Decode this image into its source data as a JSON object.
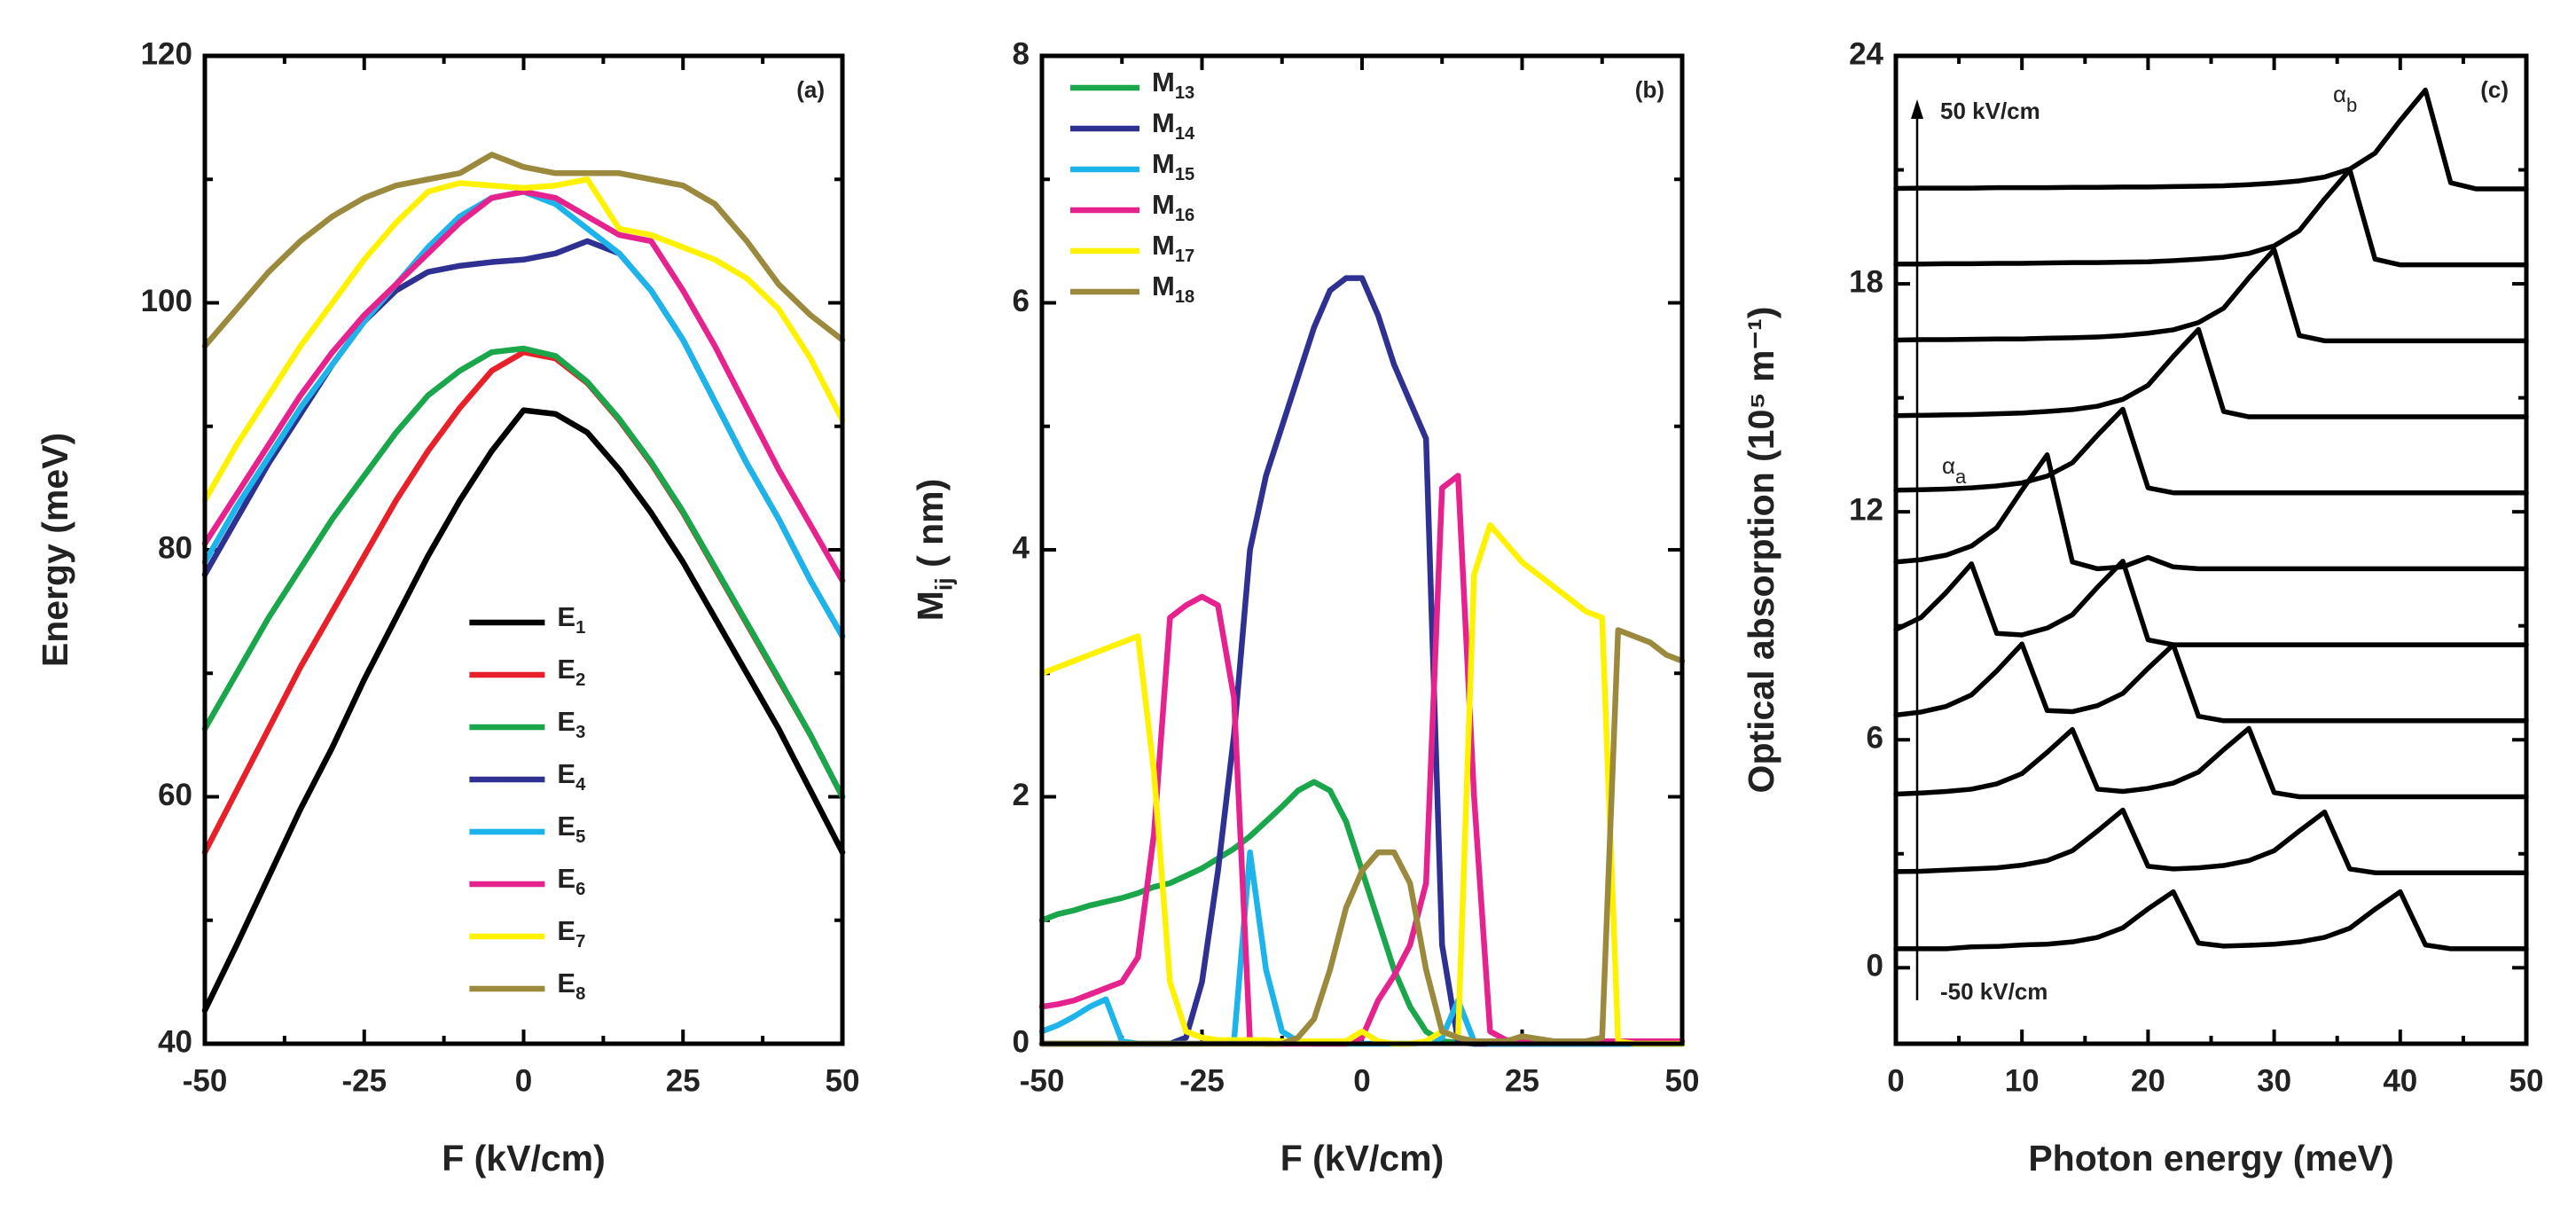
{
  "chart_data": [
    {
      "type": "line",
      "panel_label": "(a)",
      "xlabel": "F (kV/cm)",
      "ylabel": "Energy (meV)",
      "xlim": [
        -50,
        50
      ],
      "ylim": [
        40,
        120
      ],
      "xticks": [
        -50,
        -25,
        0,
        25,
        50
      ],
      "yticks": [
        40,
        60,
        80,
        100,
        120
      ],
      "legend": "lower center",
      "x": [
        -50,
        -45,
        -40,
        -35,
        -30,
        -25,
        -20,
        -15,
        -10,
        -5,
        0,
        5,
        10,
        15,
        20,
        25,
        30,
        35,
        40,
        45,
        50
      ],
      "series": [
        {
          "name": "E1",
          "color": "#000000",
          "values": [
            42.7,
            48,
            53.5,
            59,
            64,
            69.5,
            74.5,
            79.5,
            84,
            88,
            91.3,
            91,
            89.5,
            86.5,
            83,
            79,
            74.5,
            70,
            65.5,
            60.5,
            55.5
          ]
        },
        {
          "name": "E2",
          "color": "#e8202a",
          "values": [
            55.5,
            60.5,
            65.5,
            70.5,
            75,
            79.5,
            84,
            88,
            91.5,
            94.5,
            96,
            95.5,
            93.5,
            90.5,
            87,
            83,
            78.5,
            74,
            69.5,
            65,
            60
          ]
        },
        {
          "name": "E3",
          "color": "#1aa64a",
          "values": [
            65.5,
            70,
            74.5,
            78.5,
            82.5,
            86,
            89.5,
            92.5,
            94.5,
            96,
            96.3,
            95.7,
            93.6,
            90.6,
            87.1,
            83.1,
            78.6,
            74.1,
            69.6,
            65,
            60
          ]
        },
        {
          "name": "E4",
          "color": "#2e3192",
          "values": [
            78,
            82.5,
            87,
            91,
            95,
            98.5,
            101,
            102.5,
            103,
            103.3,
            103.5,
            104,
            105,
            104,
            101,
            97,
            92,
            87,
            82.5,
            77.5,
            73
          ]
        },
        {
          "name": "E5",
          "color": "#1cb4ea",
          "values": [
            79,
            83.5,
            87.5,
            91.5,
            95,
            98.5,
            101.5,
            104.5,
            107,
            108.5,
            109,
            108,
            106,
            104,
            101,
            97,
            92,
            87,
            82.5,
            77.5,
            73
          ]
        },
        {
          "name": "E6",
          "color": "#e6228f",
          "values": [
            80.5,
            84.5,
            88.5,
            92.5,
            96,
            99,
            101.5,
            104,
            106.5,
            108.5,
            109,
            108.5,
            107,
            105.5,
            105,
            101,
            96.5,
            91.5,
            86.5,
            82,
            77.5
          ]
        },
        {
          "name": "E7",
          "color": "#fff200",
          "values": [
            84,
            88.5,
            92.5,
            96.5,
            100,
            103.5,
            106.5,
            109,
            109.7,
            109.5,
            109.3,
            109.5,
            110,
            106,
            105.5,
            104.5,
            103.5,
            102,
            99.5,
            95.5,
            90.5
          ]
        },
        {
          "name": "E8",
          "color": "#9b8a3e",
          "values": [
            96.5,
            99.5,
            102.5,
            105,
            107,
            108.5,
            109.5,
            110,
            110.5,
            112,
            111,
            110.5,
            110.5,
            110.5,
            110,
            109.5,
            108,
            105,
            101.5,
            99,
            97
          ]
        }
      ]
    },
    {
      "type": "line",
      "panel_label": "(b)",
      "xlabel": "F (kV/cm)",
      "ylabel": "Mij ( nm)",
      "xlim": [
        -50,
        50
      ],
      "ylim": [
        0,
        8
      ],
      "xticks": [
        -50,
        -25,
        0,
        25,
        50
      ],
      "yticks": [
        0,
        2,
        4,
        6,
        8
      ],
      "legend": "upper left",
      "x": [
        -50,
        -47.5,
        -45,
        -42.5,
        -40,
        -37.5,
        -35,
        -32.5,
        -30,
        -27.5,
        -25,
        -22.5,
        -20,
        -17.5,
        -15,
        -12.5,
        -10,
        -7.5,
        -5,
        -2.5,
        0,
        2.5,
        5,
        7.5,
        10,
        12.5,
        15,
        17.5,
        20,
        22.5,
        25,
        27.5,
        30,
        32.5,
        35,
        37.5,
        40,
        42.5,
        45,
        47.5,
        50
      ],
      "series": [
        {
          "name": "M13",
          "color": "#1aa64a",
          "values": [
            1.0,
            1.05,
            1.08,
            1.12,
            1.15,
            1.18,
            1.22,
            1.27,
            1.3,
            1.36,
            1.42,
            1.5,
            1.58,
            1.68,
            1.8,
            1.92,
            2.05,
            2.12,
            2.05,
            1.8,
            1.4,
            1.0,
            0.6,
            0.3,
            0.1,
            0.02,
            0.01,
            0,
            0,
            0,
            0,
            0,
            0,
            0,
            0,
            0,
            0,
            0,
            0,
            0,
            0
          ]
        },
        {
          "name": "M14",
          "color": "#2e3192",
          "values": [
            0,
            0,
            0,
            0,
            0,
            0,
            0,
            0,
            0,
            0.05,
            0.5,
            1.4,
            2.5,
            4.0,
            4.6,
            5.0,
            5.4,
            5.8,
            6.1,
            6.2,
            6.2,
            5.9,
            5.5,
            5.2,
            4.9,
            0.8,
            0.02,
            0,
            0,
            0,
            0,
            0,
            0,
            0,
            0,
            0,
            0,
            0,
            0,
            0,
            0
          ]
        },
        {
          "name": "M15",
          "color": "#1cb4ea",
          "values": [
            0.1,
            0.15,
            0.22,
            0.3,
            0.36,
            0.02,
            0,
            0,
            0,
            0,
            0,
            0.01,
            0.02,
            1.55,
            0.6,
            0.1,
            0.02,
            0,
            0,
            0,
            0,
            0,
            0,
            0,
            0.01,
            0.05,
            0.35,
            0.02,
            0,
            0,
            0,
            0,
            0,
            0,
            0,
            0,
            0,
            0,
            0,
            0,
            0
          ]
        },
        {
          "name": "M16",
          "color": "#e6228f",
          "values": [
            0.3,
            0.32,
            0.35,
            0.4,
            0.45,
            0.5,
            0.7,
            1.7,
            3.45,
            3.55,
            3.62,
            3.55,
            2.8,
            0.02,
            0,
            0,
            0,
            0,
            0,
            0,
            0.05,
            0.35,
            0.55,
            0.8,
            1.3,
            4.5,
            4.6,
            2.0,
            0.1,
            0.03,
            0.02,
            0.02,
            0.02,
            0.02,
            0.02,
            0.02,
            0.02,
            0.02,
            0.02,
            0.02,
            0.02
          ]
        },
        {
          "name": "M17",
          "color": "#fff200",
          "values": [
            3.0,
            3.05,
            3.1,
            3.15,
            3.2,
            3.25,
            3.3,
            2.2,
            0.5,
            0.1,
            0.05,
            0.03,
            0.03,
            0.03,
            0.03,
            0.02,
            0.02,
            0.02,
            0.02,
            0.02,
            0.1,
            0.02,
            0,
            0,
            0.02,
            0.1,
            0.05,
            3.8,
            4.2,
            4.05,
            3.9,
            3.8,
            3.7,
            3.6,
            3.5,
            3.45,
            0.02,
            0,
            0,
            0,
            0
          ]
        },
        {
          "name": "M18",
          "color": "#9b8a3e",
          "values": [
            0,
            0,
            0,
            0,
            0,
            0,
            0,
            0,
            0,
            0,
            0,
            0,
            0,
            0,
            0,
            0,
            0.05,
            0.2,
            0.6,
            1.1,
            1.4,
            1.55,
            1.55,
            1.3,
            0.6,
            0.1,
            0.05,
            0.02,
            0.02,
            0.02,
            0.06,
            0.04,
            0.02,
            0.02,
            0.02,
            0.05,
            3.35,
            3.3,
            3.25,
            3.15,
            3.1
          ]
        }
      ]
    },
    {
      "type": "line",
      "panel_label": "(c)",
      "xlabel": "Photon energy (meV)",
      "ylabel": "Optical absorption (10⁵ m⁻¹)",
      "xlim": [
        0,
        50
      ],
      "ylim": [
        -2,
        24
      ],
      "xticks": [
        0,
        10,
        20,
        30,
        40,
        50
      ],
      "yticks": [
        0,
        6,
        12,
        18,
        24
      ],
      "color": "#000000",
      "annotations": [
        "50 kV/cm",
        "-50 kV/cm",
        "αb",
        "αa"
      ],
      "x": [
        0,
        2,
        4,
        6,
        8,
        10,
        12,
        14,
        16,
        18,
        20,
        22,
        24,
        26,
        28,
        30,
        32,
        34,
        36,
        38,
        40,
        42,
        44,
        46,
        48,
        50
      ],
      "series": [
        {
          "values": [
            0.5,
            0.5,
            0.5,
            0.55,
            0.56,
            0.6,
            0.62,
            0.68,
            0.8,
            1.05,
            1.55,
            2.0,
            0.65,
            0.57,
            0.59,
            0.62,
            0.68,
            0.8,
            1.04,
            1.54,
            2.0,
            0.6,
            0.5,
            0.5,
            0.5,
            0.5
          ]
        },
        {
          "values": [
            2.53,
            2.54,
            2.57,
            2.6,
            2.63,
            2.7,
            2.82,
            3.08,
            3.6,
            4.15,
            2.67,
            2.6,
            2.63,
            2.69,
            2.82,
            3.08,
            3.6,
            4.1,
            2.6,
            2.5,
            2.5,
            2.5,
            2.5,
            2.5,
            2.5,
            2.5
          ]
        },
        {
          "values": [
            4.57,
            4.6,
            4.64,
            4.7,
            4.84,
            5.11,
            5.67,
            6.27,
            4.7,
            4.64,
            4.72,
            4.86,
            5.15,
            5.74,
            6.3,
            4.61,
            4.5,
            4.5,
            4.5,
            4.5,
            4.5,
            4.5,
            4.5,
            4.5,
            4.5,
            4.5
          ]
        },
        {
          "values": [
            6.65,
            6.73,
            6.88,
            7.18,
            7.81,
            8.52,
            6.77,
            6.74,
            6.9,
            7.22,
            7.88,
            8.5,
            6.62,
            6.5,
            6.5,
            6.5,
            6.5,
            6.5,
            6.5,
            6.5,
            6.5,
            6.5,
            6.5,
            6.5,
            6.5,
            6.5
          ]
        },
        {
          "values": [
            8.9,
            9.22,
            9.88,
            10.63,
            8.8,
            8.76,
            8.94,
            9.29,
            10.02,
            10.7,
            8.63,
            8.5,
            8.5,
            8.5,
            8.5,
            8.5,
            8.5,
            8.5,
            8.5,
            8.5,
            8.5,
            8.5,
            8.5,
            8.5,
            8.5,
            8.5
          ]
        },
        {
          "values": [
            10.68,
            10.74,
            10.86,
            11.1,
            11.58,
            12.57,
            13.5,
            10.68,
            10.5,
            10.55,
            10.8,
            10.55,
            10.5,
            10.5,
            10.5,
            10.5,
            10.5,
            10.5,
            10.5,
            10.5,
            10.5,
            10.5,
            10.5,
            10.5,
            10.5,
            10.5
          ]
        },
        {
          "values": [
            12.57,
            12.58,
            12.6,
            12.63,
            12.68,
            12.76,
            12.94,
            13.29,
            14.02,
            14.7,
            12.63,
            12.5,
            12.5,
            12.5,
            12.5,
            12.5,
            12.5,
            12.5,
            12.5,
            12.5,
            12.5,
            12.5,
            12.5,
            12.5,
            12.5,
            12.5
          ]
        },
        {
          "values": [
            14.53,
            14.54,
            14.55,
            14.56,
            14.58,
            14.6,
            14.64,
            14.69,
            14.78,
            14.96,
            15.33,
            16.09,
            16.8,
            14.64,
            14.5,
            14.5,
            14.5,
            14.5,
            14.5,
            14.5,
            14.5,
            14.5,
            14.5,
            14.5,
            14.5,
            14.5
          ]
        },
        {
          "values": [
            16.52,
            16.53,
            16.53,
            16.54,
            16.55,
            16.55,
            16.57,
            16.58,
            16.6,
            16.64,
            16.7,
            16.79,
            16.98,
            17.36,
            18.16,
            18.9,
            16.64,
            16.5,
            16.5,
            16.5,
            16.5,
            16.5,
            16.5,
            16.5,
            16.5,
            16.5
          ]
        },
        {
          "values": [
            18.52,
            18.52,
            18.53,
            18.53,
            18.54,
            18.54,
            18.55,
            18.56,
            18.56,
            18.57,
            18.58,
            18.61,
            18.65,
            18.7,
            18.8,
            19.0,
            19.4,
            20.23,
            21.0,
            18.65,
            18.5,
            18.5,
            18.5,
            18.5,
            18.5,
            18.5
          ]
        },
        {
          "values": [
            20.51,
            20.52,
            20.52,
            20.52,
            20.53,
            20.53,
            20.53,
            20.54,
            20.54,
            20.55,
            20.55,
            20.56,
            20.57,
            20.58,
            20.61,
            20.65,
            20.71,
            20.81,
            21.02,
            21.44,
            22.3,
            23.1,
            20.66,
            20.5,
            20.5,
            20.5
          ]
        }
      ]
    }
  ]
}
